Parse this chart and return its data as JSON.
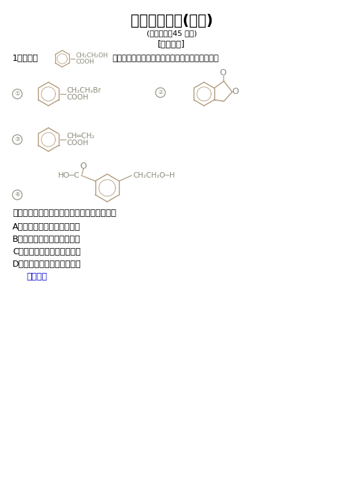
{
  "title": "学业分层测评(十六)",
  "subtitle": "(建议用时：45 分钟)",
  "section": "[学业达标]",
  "bg": "#ffffff",
  "text_color": "#000000",
  "struct_color": "#b09878",
  "label_color": "#888877",
  "answer_color": "#0000cc",
  "question": "生成这四种有机物的反应类型依次为（　　）",
  "options": [
    "A．酯化、加成、取代、缩聚",
    "B．取代、酯化、消去、缩聚",
    "C．取代、加成、消去、加聚",
    "D．取代、酯化、加成、加聚"
  ],
  "answer_link": "【解析】",
  "title_fontsize": 16,
  "body_fontsize": 9,
  "small_fontsize": 7.5,
  "chem_fontsize": 7.5
}
